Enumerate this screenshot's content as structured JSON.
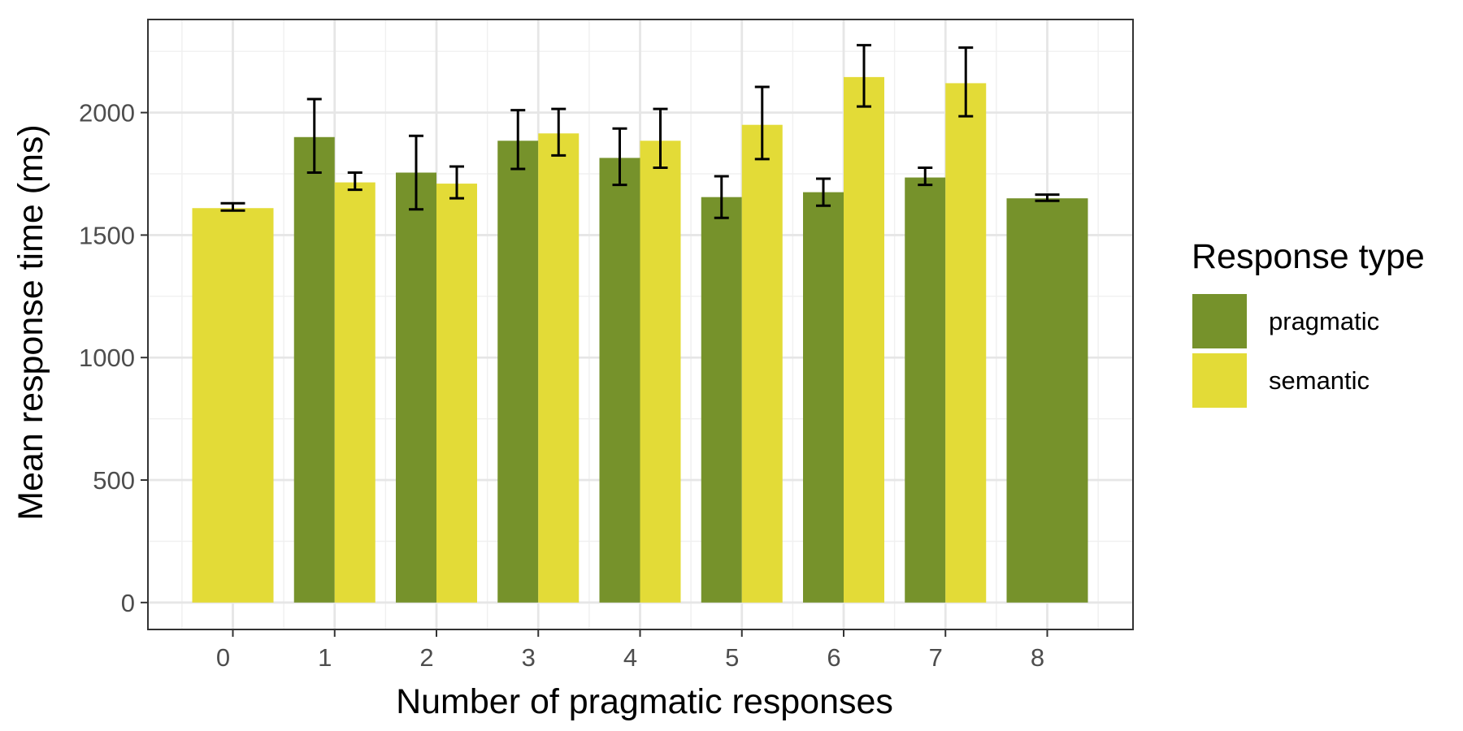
{
  "chart_data": {
    "type": "bar",
    "title": "",
    "xlabel": "Number of pragmatic responses",
    "ylabel": "Mean response time (ms)",
    "categories": [
      "0",
      "1",
      "2",
      "3",
      "4",
      "5",
      "6",
      "7",
      "8"
    ],
    "ylim": [
      -110,
      2380
    ],
    "yticks": [
      0,
      500,
      1000,
      1500,
      2000
    ],
    "yticks_labels": [
      "0",
      "500",
      "1000",
      "1500",
      "2000"
    ],
    "grid": true,
    "legend": {
      "title": "Response type",
      "position": "right"
    },
    "series": [
      {
        "name": "pragmatic",
        "color": "#76922b",
        "values": [
          null,
          1900,
          1755,
          1885,
          1815,
          1655,
          1675,
          1735,
          1650
        ],
        "error_low": [
          null,
          1755,
          1605,
          1770,
          1705,
          1570,
          1620,
          1705,
          1640
        ],
        "error_high": [
          null,
          2055,
          1905,
          2010,
          1935,
          1740,
          1730,
          1775,
          1665
        ]
      },
      {
        "name": "semantic",
        "color": "#e3db37",
        "values": [
          1610,
          1715,
          1710,
          1915,
          1885,
          1950,
          2145,
          2120,
          null
        ],
        "error_low": [
          1600,
          1685,
          1650,
          1825,
          1775,
          1810,
          2025,
          1985,
          null
        ],
        "error_high": [
          1630,
          1755,
          1780,
          2015,
          2015,
          2105,
          2275,
          2265,
          null
        ]
      }
    ]
  }
}
